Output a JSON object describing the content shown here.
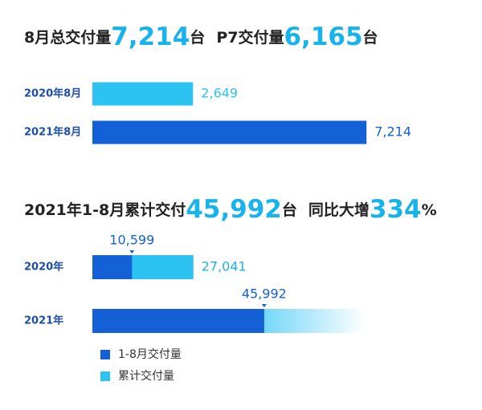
{
  "chart_data": [
    {
      "type": "bar",
      "orientation": "horizontal",
      "title": [
        {
          "text": "8月总交付量"
        },
        {
          "text": "7,214",
          "emphasis": true
        },
        {
          "text": "台"
        },
        {
          "text": "P7交付量"
        },
        {
          "text": "6,165",
          "emphasis": true
        },
        {
          "text": "台"
        }
      ],
      "categories": [
        "2020年8月",
        "2021年8月"
      ],
      "values": [
        2649,
        7214
      ],
      "value_labels": [
        "2,649",
        "7,214"
      ],
      "colors": [
        "#2cc3f3",
        "#1460d6"
      ]
    },
    {
      "type": "bar",
      "orientation": "horizontal",
      "overlap": true,
      "title": [
        {
          "text": "2021年1-8月累计交付"
        },
        {
          "text": "45,992",
          "emphasis": true
        },
        {
          "text": "台"
        },
        {
          "text": "同比大增"
        },
        {
          "text": "334",
          "emphasis": true
        },
        {
          "text": "%"
        }
      ],
      "categories": [
        "2020年",
        "2021年"
      ],
      "series": [
        {
          "name": "1-8月交付量",
          "color": "#1460d6",
          "values": [
            10599,
            45992
          ],
          "value_labels": [
            "10,599",
            "45,992"
          ]
        },
        {
          "name": "累计交付量",
          "color": "#2cc3f3",
          "values": [
            27041,
            73033
          ],
          "value_labels": [
            "27,041",
            null
          ]
        }
      ],
      "legend": "bottom-left"
    }
  ]
}
